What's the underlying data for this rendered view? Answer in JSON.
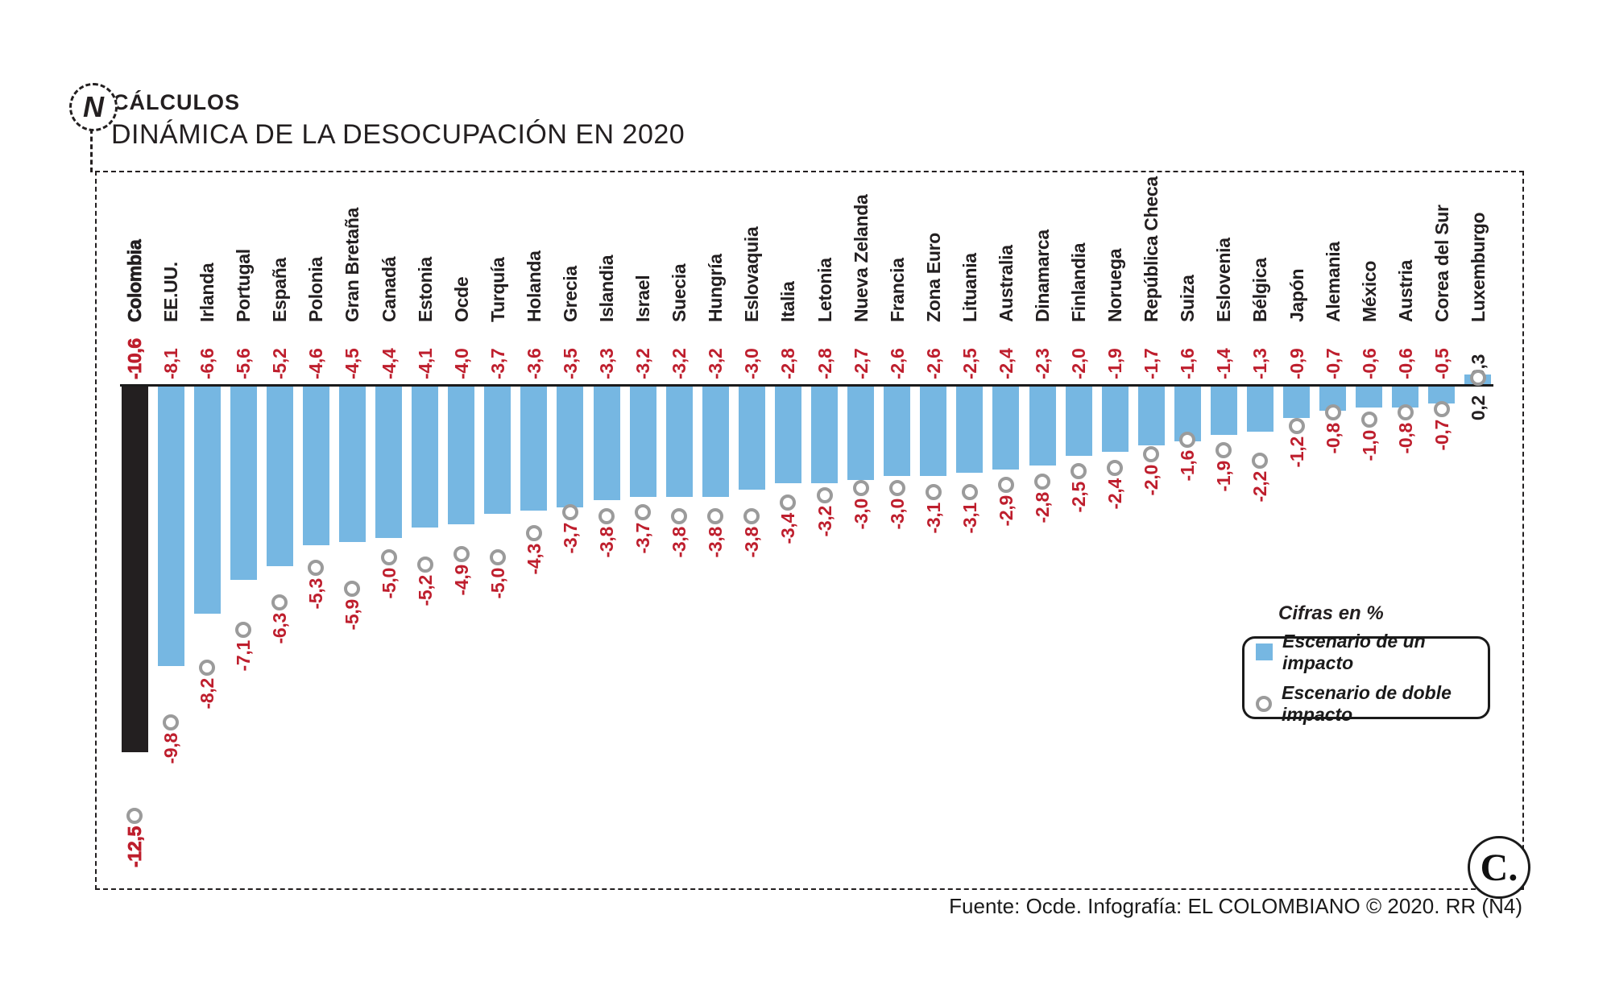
{
  "header": {
    "logo_letter": "N",
    "kicker": "CÁLCULOS",
    "title": "DINÁMICA DE LA DESOCUPACIÓN EN 2020"
  },
  "legend": {
    "note": "Cifras en %",
    "items": [
      {
        "marker": "blue-square",
        "label": "Escenario de un impacto"
      },
      {
        "marker": "gray-circle",
        "label": "Escenario de doble impacto"
      }
    ]
  },
  "footer": {
    "source": "Fuente: Ocde. Infografía: EL COLOMBIANO © 2020. RR (N4)"
  },
  "brand": {
    "logo_text": "C."
  },
  "colors": {
    "bar_blue": "#76b7e2",
    "bar_black": "#231f20",
    "value_red": "#be1e2d",
    "circle_gray": "#9b9b9b"
  },
  "chart_data": {
    "type": "bar",
    "title": "DINÁMICA DE LA DESOCUPACIÓN EN 2020",
    "unit": "%",
    "orientation": "vertical",
    "grid": false,
    "legend_position": "inside-right",
    "ylim": [
      -13,
      1
    ],
    "highlight_category": "Colombia",
    "categories": [
      "Colombia",
      "EE.UU.",
      "Irlanda",
      "Portugal",
      "España",
      "Polonia",
      "Gran Bretaña",
      "Canadá",
      "Estonia",
      "Ocde",
      "Turquía",
      "Holanda",
      "Grecia",
      "Islandia",
      "Israel",
      "Suecia",
      "Hungría",
      "Eslovaquia",
      "Italia",
      "Letonia",
      "Nueva Zelanda",
      "Francia",
      "Zona Euro",
      "Lituania",
      "Australia",
      "Dinamarca",
      "Finlandia",
      "Noruega",
      "República Checa",
      "Suiza",
      "Eslovenia",
      "Bélgica",
      "Japón",
      "Alemania",
      "México",
      "Austria",
      "Corea del Sur",
      "Luxemburgo"
    ],
    "series": [
      {
        "name": "Escenario de un impacto",
        "values": [
          -10.6,
          -8.1,
          -6.6,
          -5.6,
          -5.2,
          -4.6,
          -4.5,
          -4.4,
          -4.1,
          -4.0,
          -3.7,
          -3.6,
          -3.5,
          -3.3,
          -3.2,
          -3.2,
          -3.2,
          -3.0,
          -2.8,
          -2.8,
          -2.7,
          -2.6,
          -2.6,
          -2.5,
          -2.4,
          -2.3,
          -2.0,
          -1.9,
          -1.7,
          -1.6,
          -1.4,
          -1.3,
          -0.9,
          -0.7,
          -0.6,
          -0.6,
          -0.5,
          0.3
        ]
      },
      {
        "name": "Escenario de doble impacto",
        "values": [
          -12.5,
          -9.8,
          -8.2,
          -7.1,
          -6.3,
          -5.3,
          -5.9,
          -5.0,
          -5.2,
          -4.9,
          -5.0,
          -4.3,
          -3.7,
          -3.8,
          -3.7,
          -3.8,
          -3.8,
          -3.8,
          -3.4,
          -3.2,
          -3.0,
          -3.0,
          -3.1,
          -3.1,
          -2.9,
          -2.8,
          -2.5,
          -2.4,
          -2.0,
          -1.6,
          -1.9,
          -2.2,
          -1.2,
          -0.8,
          -1.0,
          -0.8,
          -0.7,
          0.2
        ]
      }
    ],
    "value_labels": [
      [
        "-10,6",
        "-8,1",
        "-6,6",
        "-5,6",
        "-5,2",
        "-4,6",
        "-4,5",
        "-4,4",
        "-4,1",
        "-4,0",
        "-3,7",
        "-3,6",
        "-3,5",
        "-3,3",
        "-3,2",
        "-3,2",
        "-3,2",
        "-3,0",
        "-2,8",
        "-2,8",
        "-2,7",
        "-2,6",
        "-2,6",
        "-2,5",
        "-2,4",
        "-2,3",
        "-2,0",
        "-1,9",
        "-1,7",
        "-1,6",
        "-1,4",
        "-1,3",
        "-0,9",
        "-0,7",
        "-0,6",
        "-0,6",
        "-0,5",
        "0,3"
      ],
      [
        "-12,5",
        "-9,8",
        "-8,2",
        "-7,1",
        "-6,3",
        "-5,3",
        "-5,9",
        "-5,0",
        "-5,2",
        "-4,9",
        "-5,0",
        "-4,3",
        "-3,7",
        "-3,8",
        "-3,7",
        "-3,8",
        "-3,8",
        "-3,8",
        "-3,4",
        "-3,2",
        "-3,0",
        "-3,0",
        "-3,1",
        "-3,1",
        "-2,9",
        "-2,8",
        "-2,5",
        "-2,4",
        "-2,0",
        "-1,6",
        "-1,9",
        "-2,2",
        "-1,2",
        "-0,8",
        "-1,0",
        "-0,8",
        "-0,7",
        "0,2"
      ]
    ]
  }
}
